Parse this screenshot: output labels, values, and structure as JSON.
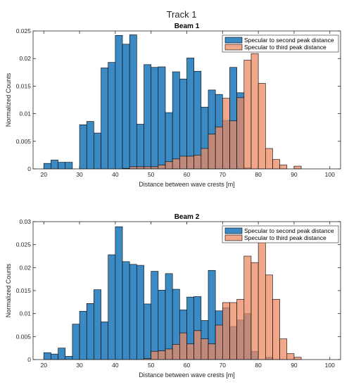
{
  "figure_title": "Track 1",
  "colors": {
    "series_1": "#3b8ac4",
    "series_2": "#ec8a63",
    "overlap": "#9e5640",
    "axis": "#262626"
  },
  "chart_data": [
    {
      "type": "bar",
      "subtitle": "Beam 1",
      "xlabel": "Distance between wave crests [m]",
      "ylabel": "Normalized Counts",
      "xlim": [
        17,
        103
      ],
      "ylim": [
        0,
        0.025
      ],
      "xticks": [
        20,
        30,
        40,
        50,
        60,
        70,
        80,
        90,
        100
      ],
      "yticks": [
        0,
        0.005,
        0.01,
        0.015,
        0.02,
        0.025
      ],
      "ytick_labels": [
        "0",
        "0.005",
        "0.01",
        "0.015",
        "0.02",
        "0.025"
      ],
      "bin_start": 20,
      "bin_width": 2,
      "legend": "top-right",
      "series": [
        {
          "name": "Specular to second peak distance",
          "values": [
            0.001,
            0.0016,
            0.0012,
            0.0012,
            0,
            0.008,
            0.0086,
            0.0065,
            0.0183,
            0.0193,
            0.0242,
            0.0226,
            0.0243,
            0.0081,
            0.0189,
            0.0184,
            0.0185,
            0.0102,
            0.0176,
            0.0163,
            0.0201,
            0.0177,
            0.0112,
            0.0143,
            0.0135,
            0.0088,
            0.0184,
            0.0138,
            0.0002,
            0,
            0,
            0,
            0,
            0,
            0,
            0,
            0,
            0,
            0,
            0,
            0
          ]
        },
        {
          "name": "Specular to third peak distance",
          "values": [
            0,
            0,
            0,
            0,
            0,
            0,
            0,
            0,
            0,
            0,
            0,
            0.0001,
            0.0004,
            0.0004,
            0.0004,
            0.0004,
            0.0007,
            0.0013,
            0.0018,
            0.0023,
            0.0023,
            0.0025,
            0.0037,
            0.0063,
            0.0076,
            0.0128,
            0.0087,
            0.0129,
            0.0197,
            0.0209,
            0.0155,
            0.0037,
            0.0017,
            0.0007,
            0,
            0.0005,
            0,
            0,
            0,
            0,
            0
          ]
        }
      ]
    },
    {
      "type": "bar",
      "subtitle": "Beam 2",
      "xlabel": "Distance between wave crests [m]",
      "ylabel": "Normalized Counts",
      "xlim": [
        17,
        103
      ],
      "ylim": [
        0,
        0.03
      ],
      "xticks": [
        20,
        30,
        40,
        50,
        60,
        70,
        80,
        90,
        100
      ],
      "yticks": [
        0,
        0.005,
        0.01,
        0.015,
        0.02,
        0.025,
        0.03
      ],
      "ytick_labels": [
        "0",
        "0.005",
        "0.01",
        "0.015",
        "0.02",
        "0.025",
        "0.03"
      ],
      "bin_start": 20,
      "bin_width": 2,
      "legend": "top-right",
      "series": [
        {
          "name": "Specular to second peak distance",
          "values": [
            0.0015,
            0.0012,
            0.0025,
            0.0007,
            0.0077,
            0.0105,
            0.0122,
            0.0152,
            0.0082,
            0.0228,
            0.0289,
            0.0213,
            0.0207,
            0.0205,
            0.0121,
            0.0192,
            0.0151,
            0.0187,
            0.0153,
            0.0108,
            0.0136,
            0.0137,
            0.0085,
            0.0194,
            0.0106,
            0.0113,
            0.0072,
            0.0086,
            0.01,
            0.0018,
            0,
            0.0005,
            0,
            0,
            0,
            0,
            0,
            0,
            0,
            0,
            0
          ]
        },
        {
          "name": "Specular to third peak distance",
          "values": [
            0,
            0,
            0,
            0,
            0,
            0,
            0,
            0,
            0,
            0,
            0,
            0,
            0,
            0,
            0.0002,
            0.0018,
            0.0019,
            0.0023,
            0.0033,
            0.0058,
            0.0034,
            0.0063,
            0.0045,
            0.0034,
            0.0075,
            0.0124,
            0.0124,
            0.0131,
            0.0225,
            0.0211,
            0.0273,
            0.0184,
            0.0131,
            0.0045,
            0.0013,
            0.0005,
            0,
            0,
            0,
            0,
            0
          ]
        }
      ]
    }
  ]
}
